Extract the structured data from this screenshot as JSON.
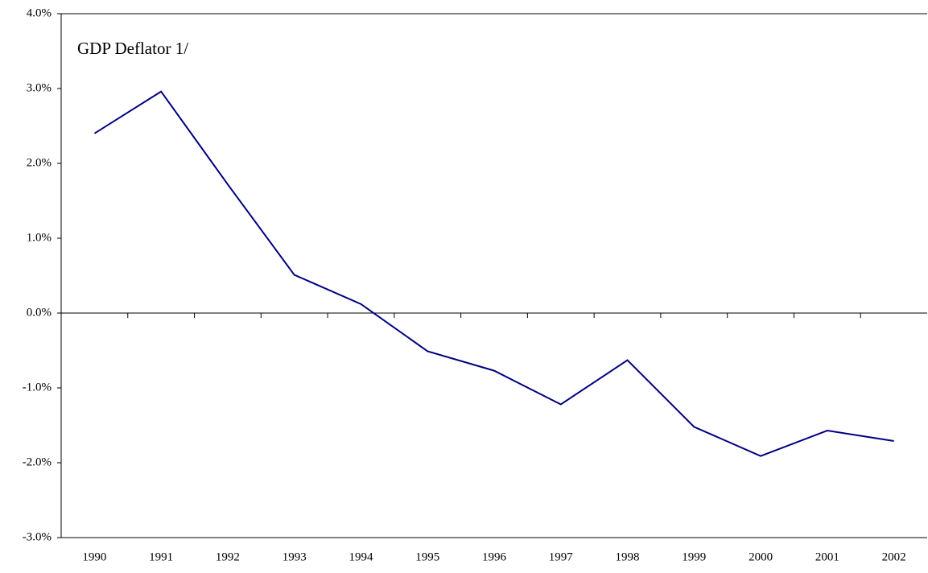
{
  "chart_data": {
    "type": "line",
    "title": "GDP Deflator 1/",
    "categories": [
      "1990",
      "1991",
      "1992",
      "1993",
      "1994",
      "1995",
      "1996",
      "1997",
      "1998",
      "1999",
      "2000",
      "2001",
      "2002"
    ],
    "series": [
      {
        "name": "GDP Deflator",
        "color": "#000080",
        "values": [
          2.4,
          2.96,
          1.72,
          0.51,
          0.12,
          -0.51,
          -0.77,
          -1.22,
          -0.63,
          -1.52,
          -1.91,
          -1.57,
          -1.71
        ]
      }
    ],
    "ylim": [
      -3,
      4
    ],
    "yticks": [
      {
        "value": -3,
        "label": "-3.0%"
      },
      {
        "value": -2,
        "label": "-2.0%"
      },
      {
        "value": -1,
        "label": "-1.0%"
      },
      {
        "value": 0,
        "label": "0.0%"
      },
      {
        "value": 1,
        "label": "1.0%"
      },
      {
        "value": 2,
        "label": "2.0%"
      },
      {
        "value": 3,
        "label": "3.0%"
      },
      {
        "value": 4,
        "label": "4.0%"
      }
    ],
    "grid": false
  }
}
